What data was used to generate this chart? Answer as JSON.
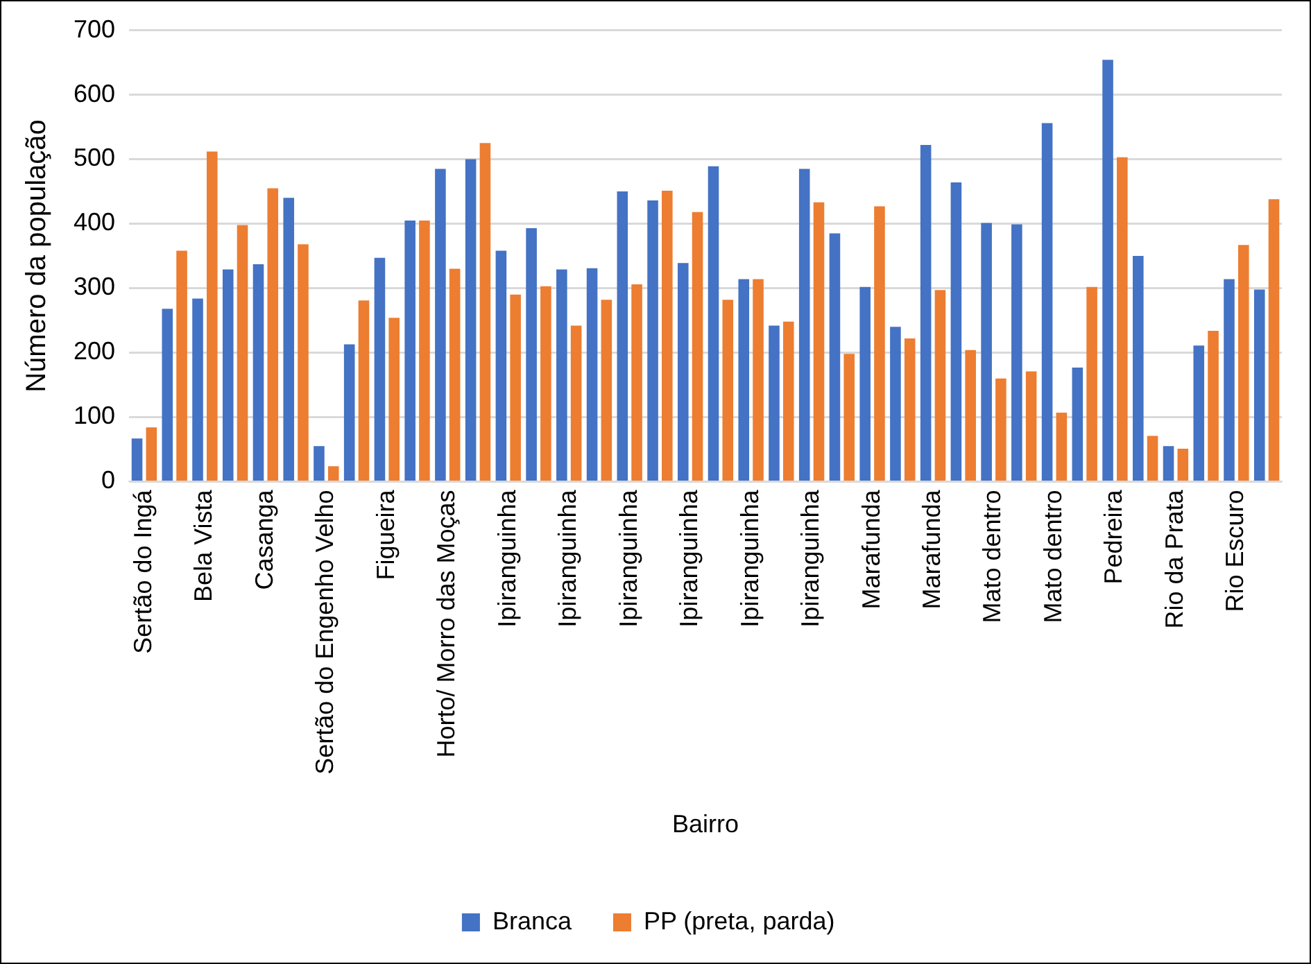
{
  "chart_data": {
    "type": "bar",
    "xlabel": "Bairro",
    "ylabel": "Número da população",
    "categories": [
      "Sertão do Ingá",
      null,
      "Bela Vista",
      null,
      "Casanga",
      null,
      "Sertão do Engenho Velho",
      null,
      "Figueira",
      null,
      "Horto/ Morro das Moças",
      null,
      "Ipiranguinha",
      null,
      "Ipiranguinha",
      null,
      "Ipiranguinha",
      null,
      "Ipiranguinha",
      null,
      "Ipiranguinha",
      null,
      "Ipiranguinha",
      null,
      "Marafunda",
      null,
      "Marafunda",
      null,
      "Mato dentro",
      null,
      "Mato dentro",
      null,
      "Pedreira",
      null,
      "Rio da Prata",
      null,
      "Rio Escuro",
      null
    ],
    "series": [
      {
        "name": "Branca",
        "color": "#4472c4",
        "values": [
          67,
          268,
          284,
          329,
          337,
          440,
          55,
          213,
          347,
          405,
          485,
          500,
          358,
          393,
          329,
          331,
          450,
          436,
          339,
          489,
          314,
          242,
          485,
          385,
          302,
          240,
          522,
          464,
          401,
          399,
          556,
          177,
          654,
          350,
          55,
          211,
          314,
          298
        ]
      },
      {
        "name": "PP (preta, parda)",
        "color": "#ed7d31",
        "values": [
          84,
          358,
          512,
          398,
          455,
          368,
          24,
          281,
          254,
          405,
          330,
          525,
          290,
          303,
          242,
          282,
          306,
          451,
          418,
          282,
          314,
          248,
          433,
          198,
          427,
          222,
          297,
          204,
          160,
          171,
          107,
          302,
          503,
          71,
          51,
          234,
          367,
          438
        ]
      }
    ],
    "ylim": [
      0,
      700
    ],
    "yticks": [
      0,
      100,
      200,
      300,
      400,
      500,
      600,
      700
    ],
    "grid": "y",
    "legend": "bottom"
  }
}
